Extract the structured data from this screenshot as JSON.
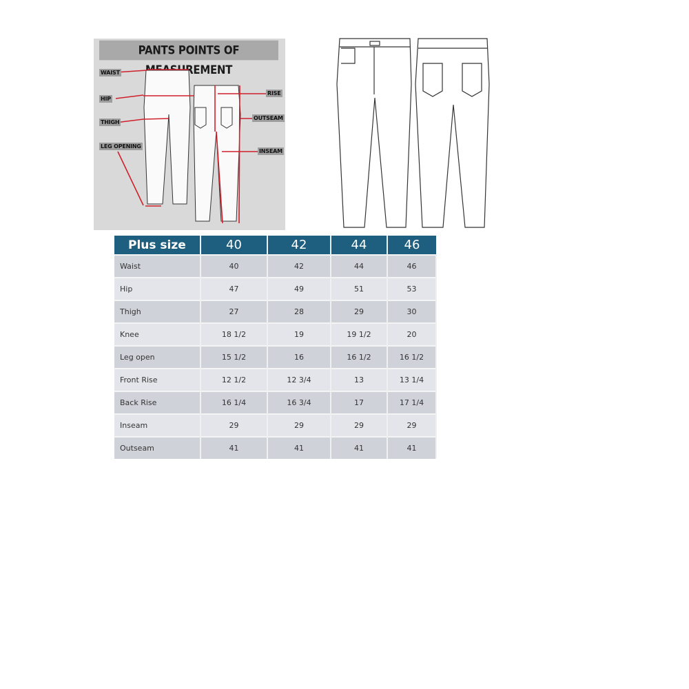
{
  "diagram": {
    "title": "PANTS POINTS OF MEASUREMENT",
    "labels": {
      "waist": "WAIST",
      "hip": "HIP",
      "thigh": "THIGH",
      "leg_opening": "LEG OPENING",
      "rise": "RISE",
      "outseam": "OUTSEAM",
      "inseam": "INSEAM"
    },
    "arrow_color": "#d0202a"
  },
  "table": {
    "header": [
      "Plus size",
      "40",
      "42",
      "44",
      "46"
    ],
    "header_color": "#1e5e7e",
    "rows": [
      [
        "Waist",
        "40",
        "42",
        "44",
        "46"
      ],
      [
        "Hip",
        "47",
        "49",
        "51",
        "53"
      ],
      [
        "Thigh",
        "27",
        "28",
        "29",
        "30"
      ],
      [
        "Knee",
        "18 1/2",
        "19",
        "19 1/2",
        "20"
      ],
      [
        "Leg open",
        "15 1/2",
        "16",
        "16 1/2",
        "16 1/2"
      ],
      [
        "Front Rise",
        "12 1/2",
        "12 3/4",
        "13",
        "13 1/4"
      ],
      [
        "Back Rise",
        "16 1/4",
        "16 3/4",
        "17",
        "17 1/4"
      ],
      [
        "Inseam",
        "29",
        "29",
        "29",
        "29"
      ],
      [
        "Outseam",
        "41",
        "41",
        "41",
        "41"
      ]
    ]
  }
}
